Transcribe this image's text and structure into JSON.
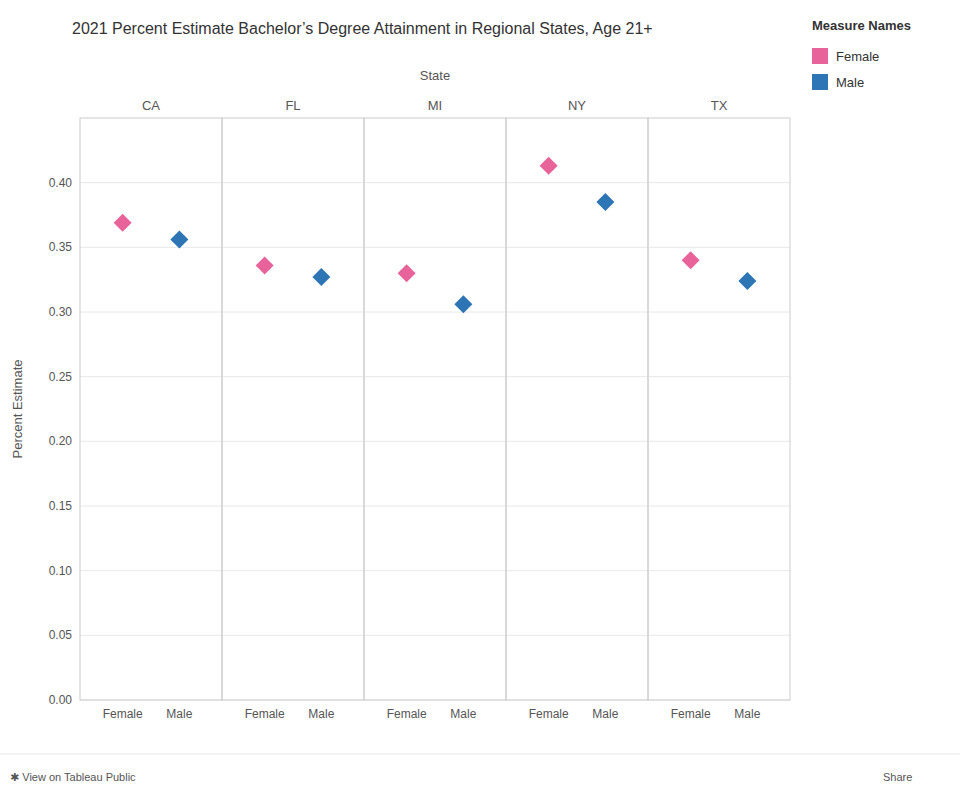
{
  "chart_data": {
    "type": "dot",
    "title": "2021 Percent Estimate Bachelor’s Degree Attainment in Regional States, Age 21+",
    "xlabel": "State",
    "ylabel": "Percent Estimate",
    "categories": [
      "CA",
      "FL",
      "MI",
      "NY",
      "TX"
    ],
    "series": [
      {
        "name": "Female",
        "color": "#e8639a",
        "values": [
          0.369,
          0.336,
          0.33,
          0.413,
          0.34
        ]
      },
      {
        "name": "Male",
        "color": "#2e75b6",
        "values": [
          0.356,
          0.327,
          0.306,
          0.385,
          0.324
        ]
      }
    ],
    "marker": "diamond",
    "ylim": [
      0.0,
      0.45
    ],
    "yticks": [
      {
        "value": 0.0,
        "label": "0.00"
      },
      {
        "value": 0.05,
        "label": "0.05"
      },
      {
        "value": 0.1,
        "label": "0.10"
      },
      {
        "value": 0.15,
        "label": "0.15"
      },
      {
        "value": 0.2,
        "label": "0.20"
      },
      {
        "value": 0.25,
        "label": "0.25"
      },
      {
        "value": 0.3,
        "label": "0.30"
      },
      {
        "value": 0.35,
        "label": "0.35"
      },
      {
        "value": 0.4,
        "label": "0.40"
      }
    ],
    "grid": true,
    "legend": "top-right",
    "legend_title": "Measure Names",
    "annotations": [
      "✱ View on Tableau Public",
      "Share"
    ]
  }
}
